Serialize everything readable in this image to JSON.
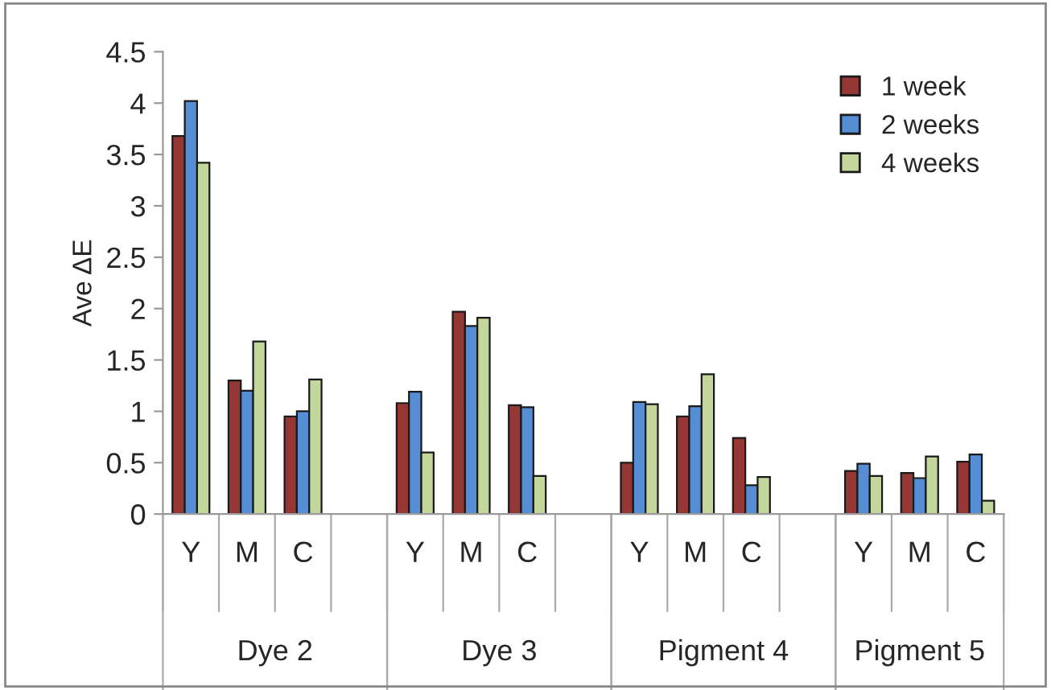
{
  "chart_data": {
    "type": "bar",
    "ylabel": "Ave ΔE",
    "categories": [
      "Y",
      "M",
      "C",
      null,
      "Y",
      "M",
      "C",
      null,
      "Y",
      "M",
      "C",
      null,
      "Y",
      "M",
      "C"
    ],
    "series": [
      {
        "name": "1 week",
        "color": "#953735",
        "values": [
          3.68,
          1.3,
          0.95,
          null,
          1.08,
          1.97,
          1.06,
          null,
          0.5,
          0.95,
          0.74,
          null,
          0.42,
          0.4,
          0.51
        ]
      },
      {
        "name": "2 weeks",
        "color": "#558ed5",
        "values": [
          4.02,
          1.2,
          1.0,
          null,
          1.19,
          1.83,
          1.04,
          null,
          1.09,
          1.05,
          0.28,
          null,
          0.49,
          0.35,
          0.58
        ]
      },
      {
        "name": "4 weeks",
        "color": "#c3d69b",
        "values": [
          3.42,
          1.68,
          1.31,
          null,
          0.6,
          1.91,
          0.37,
          null,
          1.07,
          1.36,
          0.36,
          null,
          0.37,
          0.56,
          0.13
        ]
      }
    ],
    "annotations": [
      "Dye 2",
      "Dye 3",
      "Pigment 4",
      "Pigment 5"
    ],
    "ylim": [
      0,
      4.5
    ],
    "yticks": [
      0,
      0.5,
      1,
      1.5,
      2,
      2.5,
      3,
      3.5,
      4,
      4.5
    ],
    "legend": "top right",
    "grid": false
  }
}
